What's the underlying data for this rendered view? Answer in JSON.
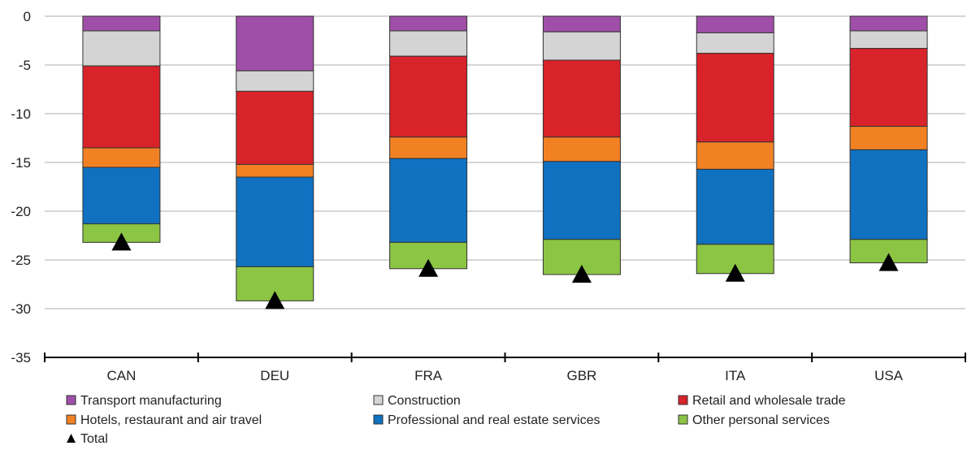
{
  "chart_data": {
    "type": "bar",
    "stacked": true,
    "categories": [
      "CAN",
      "DEU",
      "FRA",
      "GBR",
      "ITA",
      "USA"
    ],
    "ylim": [
      -35,
      0
    ],
    "yticks": [
      0,
      -5,
      -10,
      -15,
      -20,
      -25,
      -30,
      -35
    ],
    "grid": true,
    "legend_position": "bottom",
    "series": [
      {
        "name": "Transport manufacturing",
        "color": "#a04fa8",
        "values": [
          -1.5,
          -5.6,
          -1.5,
          -1.6,
          -1.7,
          -1.5
        ]
      },
      {
        "name": "Construction",
        "color": "#d4d4d4",
        "values": [
          -3.6,
          -2.1,
          -2.6,
          -2.9,
          -2.1,
          -1.8
        ]
      },
      {
        "name": "Retail and wholesale trade",
        "color": "#d9232a",
        "values": [
          -8.4,
          -7.5,
          -8.3,
          -7.9,
          -9.1,
          -8.0
        ]
      },
      {
        "name": "Hotels, restaurant and air travel",
        "color": "#f28124",
        "values": [
          -2.0,
          -1.3,
          -2.2,
          -2.5,
          -2.8,
          -2.4
        ]
      },
      {
        "name": "Professional and real estate services",
        "color": "#1071c0",
        "values": [
          -5.8,
          -9.2,
          -8.6,
          -8.0,
          -7.7,
          -9.2
        ]
      },
      {
        "name": "Other personal services",
        "color": "#8cc444",
        "values": [
          -1.9,
          -3.5,
          -2.7,
          -3.6,
          -3.0,
          -2.4
        ]
      }
    ],
    "total": {
      "name": "Total",
      "color": "#000000",
      "values": [
        -23.2,
        -29.2,
        -25.9,
        -26.5,
        -26.4,
        -25.3
      ]
    }
  }
}
